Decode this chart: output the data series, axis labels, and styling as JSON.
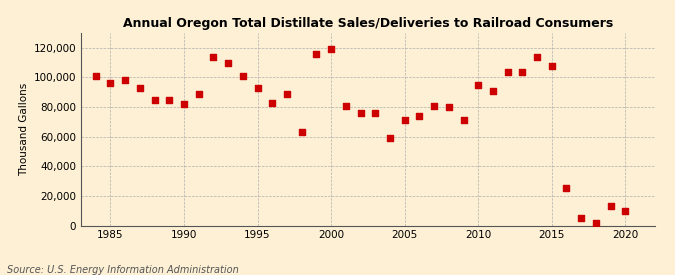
{
  "title": "Annual Oregon Total Distillate Sales/Deliveries to Railroad Consumers",
  "ylabel": "Thousand Gallons",
  "source": "Source: U.S. Energy Information Administration",
  "years": [
    1984,
    1985,
    1986,
    1987,
    1988,
    1989,
    1990,
    1991,
    1992,
    1993,
    1994,
    1995,
    1996,
    1997,
    1998,
    1999,
    2000,
    2001,
    2002,
    2003,
    2004,
    2005,
    2006,
    2007,
    2008,
    2009,
    2010,
    2011,
    2012,
    2013,
    2014,
    2015,
    2016,
    2017,
    2018,
    2019,
    2020
  ],
  "values": [
    101000,
    96000,
    98000,
    93000,
    85000,
    85000,
    82000,
    89000,
    114000,
    110000,
    101000,
    93000,
    83000,
    89000,
    63000,
    116000,
    119000,
    81000,
    76000,
    76000,
    59000,
    71000,
    74000,
    81000,
    80000,
    71000,
    95000,
    91000,
    104000,
    104000,
    114000,
    108000,
    25000,
    5000,
    2000,
    13000,
    10000
  ],
  "marker_color": "#cc0000",
  "marker_size": 16,
  "bg_color": "#fdf0d5",
  "grid_color": "#aaaaaa",
  "xlim": [
    1983,
    2022
  ],
  "ylim": [
    0,
    130000
  ],
  "yticks": [
    0,
    20000,
    40000,
    60000,
    80000,
    100000,
    120000
  ],
  "ytick_labels": [
    "0",
    "20,000",
    "40,000",
    "60,000",
    "80,000",
    "100,000",
    "120,000"
  ],
  "xticks": [
    1985,
    1990,
    1995,
    2000,
    2005,
    2010,
    2015,
    2020
  ],
  "title_fontsize": 9,
  "axis_fontsize": 7.5,
  "source_fontsize": 7
}
